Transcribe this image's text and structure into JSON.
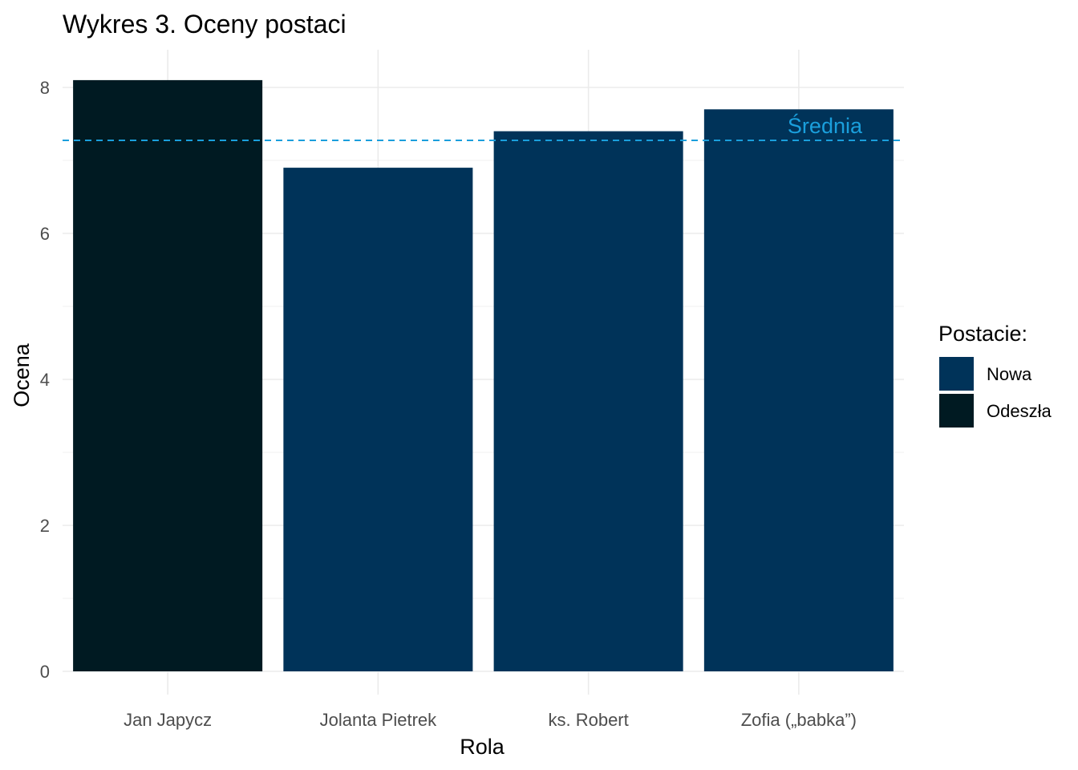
{
  "chart_data": {
    "type": "bar",
    "title": "Wykres 3. Oceny postaci",
    "xlabel": "Rola",
    "ylabel": "Ocena",
    "categories": [
      "Jan Japycz",
      "Jolanta Pietrek",
      "ks. Robert",
      "Zofia („babka”)"
    ],
    "values": [
      8.1,
      6.9,
      7.4,
      7.7
    ],
    "groups": [
      "Odeszła",
      "Nowa",
      "Nowa",
      "Nowa"
    ],
    "ylim": [
      0,
      8.1
    ],
    "yticks": [
      0,
      2,
      4,
      6,
      8
    ],
    "ytick_labels": [
      "0",
      "2",
      "4",
      "6",
      "8"
    ],
    "grid": true,
    "reference_line": {
      "value": 7.275,
      "label": "Średnia",
      "color": "#1a9fdc",
      "style": "dashed"
    },
    "legend": {
      "title": "Postacie:",
      "position": "right",
      "entries": [
        {
          "label": "Nowa",
          "color": "#003359"
        },
        {
          "label": "Odeszła",
          "color": "#001a22"
        }
      ]
    },
    "colors": {
      "Nowa": "#003359",
      "Odeszła": "#001a22"
    }
  }
}
